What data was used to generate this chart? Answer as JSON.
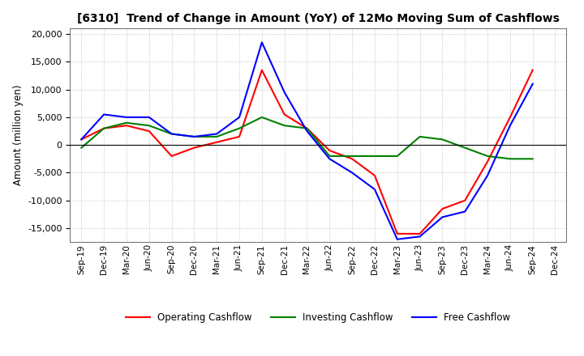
{
  "title": "[6310]  Trend of Change in Amount (YoY) of 12Mo Moving Sum of Cashflows",
  "ylabel": "Amount (million yen)",
  "ylim": [
    -17500,
    21000
  ],
  "yticks": [
    -15000,
    -10000,
    -5000,
    0,
    5000,
    10000,
    15000,
    20000
  ],
  "x_labels": [
    "Sep-19",
    "Dec-19",
    "Mar-20",
    "Jun-20",
    "Sep-20",
    "Dec-20",
    "Mar-21",
    "Jun-21",
    "Sep-21",
    "Dec-21",
    "Mar-22",
    "Jun-22",
    "Sep-22",
    "Dec-22",
    "Mar-23",
    "Jun-23",
    "Sep-23",
    "Dec-23",
    "Mar-24",
    "Jun-24",
    "Sep-24",
    "Dec-24"
  ],
  "operating": [
    1000,
    3000,
    3500,
    2500,
    -2000,
    -500,
    500,
    1500,
    13500,
    5500,
    3000,
    -1000,
    -2500,
    -5500,
    -16000,
    -16000,
    -11500,
    -10000,
    -3000,
    5000,
    13500,
    null
  ],
  "investing": [
    -500,
    3000,
    4000,
    3500,
    2000,
    1500,
    1500,
    3000,
    5000,
    3500,
    3000,
    -2000,
    -2000,
    -2000,
    -2000,
    1500,
    1000,
    -500,
    -2000,
    -2500,
    -2500,
    null
  ],
  "free": [
    1000,
    5500,
    5000,
    5000,
    2000,
    1500,
    2000,
    5000,
    18500,
    9500,
    2500,
    -2500,
    -5000,
    -8000,
    -17000,
    -16500,
    -13000,
    -12000,
    -5500,
    3500,
    11000,
    null
  ],
  "operating_color": "#ff0000",
  "investing_color": "#008000",
  "free_color": "#0000ff",
  "background_color": "#ffffff",
  "grid_color": "#aaaaaa"
}
